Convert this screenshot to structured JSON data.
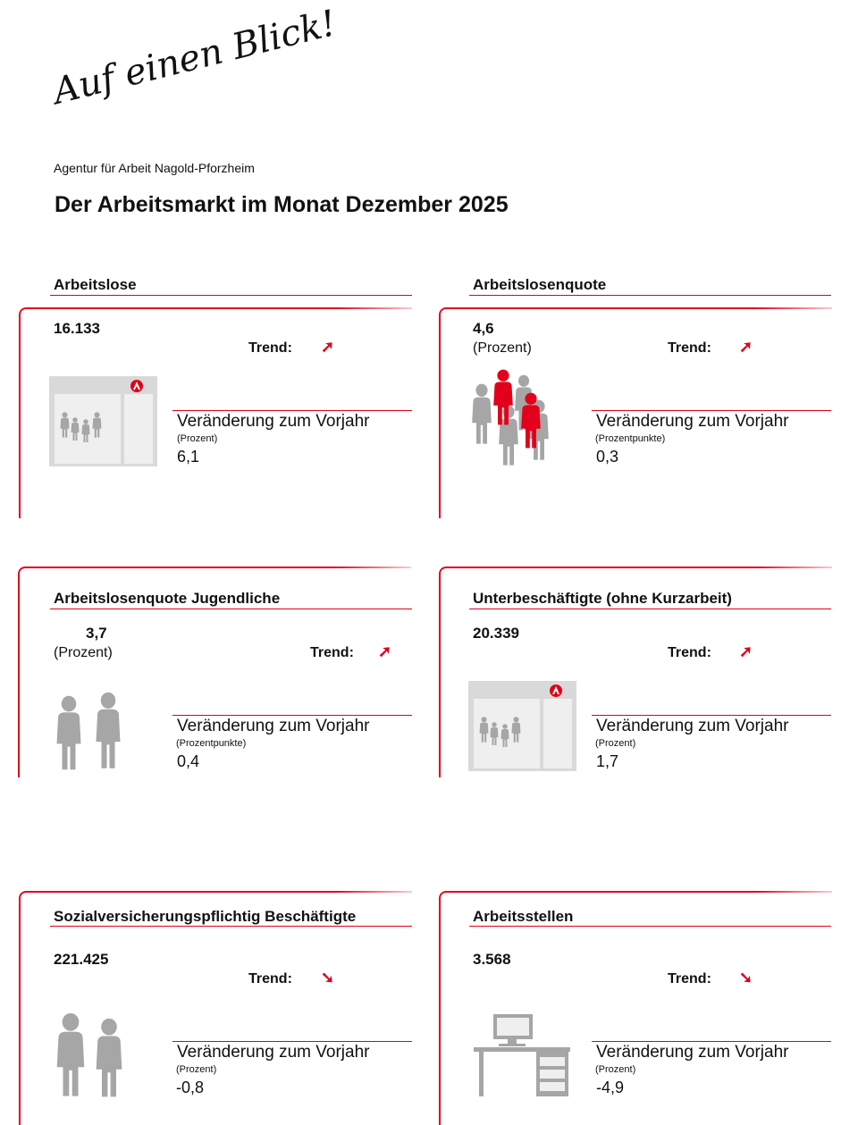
{
  "header": {
    "slogan": "Auf einen Blick!",
    "agency": "Agentur für Arbeit Nagold-Pforzheim",
    "title": "Der Arbeitsmarkt im Monat Dezember 2025"
  },
  "colors": {
    "accent": "#e2001a",
    "icon_gray": "#a6a6a6"
  },
  "common": {
    "trend_label": "Trend:",
    "change_label": "Veränderung zum Vorjahr"
  },
  "cards": [
    {
      "title": "Arbeitslose",
      "value": "16.133",
      "unit": "",
      "trend": "up",
      "trend_icon": "arrow-up-right",
      "icon": "agency-office",
      "change_unit": "(Prozent)",
      "change": "6,1"
    },
    {
      "title": "Arbeitslosenquote",
      "value": "4,6",
      "unit": "(Prozent)",
      "trend": "up",
      "trend_icon": "arrow-up-right",
      "icon": "people-group",
      "change_unit": "(Prozentpunkte)",
      "change": "0,3"
    },
    {
      "title": "Arbeitslosenquote Jugendliche",
      "value": "3,7",
      "unit": "(Prozent)",
      "trend": "up",
      "trend_icon": "arrow-up-right",
      "icon": "youth",
      "change_unit": "(Prozentpunkte)",
      "change": "0,4"
    },
    {
      "title": "Unterbeschäftigte (ohne Kurzarbeit)",
      "value": "20.339",
      "unit": "",
      "trend": "up",
      "trend_icon": "arrow-up-right",
      "icon": "agency-office",
      "change_unit": "(Prozent)",
      "change": "1,7"
    },
    {
      "title": "Sozialversicherungspflichtig Beschäftigte",
      "value": "221.425",
      "unit": "",
      "trend": "down",
      "trend_icon": "arrow-down-right",
      "icon": "workers",
      "change_unit": "(Prozent)",
      "change": "-0,8"
    },
    {
      "title": "Arbeitsstellen",
      "value": "3.568",
      "unit": "",
      "trend": "down",
      "trend_icon": "arrow-down-right",
      "icon": "desk",
      "change_unit": "(Prozent)",
      "change": "-4,9"
    }
  ]
}
